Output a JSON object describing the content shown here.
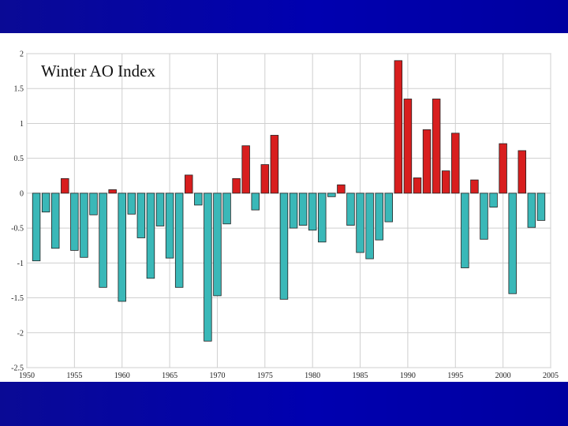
{
  "chart_data": {
    "type": "bar",
    "title": "Winter AO Index",
    "xlabel": "",
    "ylabel": "",
    "xlim": [
      1950,
      2005
    ],
    "ylim": [
      -2.5,
      2
    ],
    "x_ticks": [
      "1950",
      "1955",
      "1960",
      "1965",
      "1970",
      "1975",
      "1980",
      "1985",
      "1990",
      "1995",
      "2000",
      "2005"
    ],
    "y_ticks": [
      "2",
      "1.5",
      "1",
      "0.5",
      "0",
      "-0.5",
      "-1",
      "-1.5",
      "-2",
      "-2.5"
    ],
    "grid": true,
    "colors": {
      "positive": "#d81e1e",
      "negative": "#3ab8b8",
      "outline": "#222222"
    },
    "x": [
      1951,
      1952,
      1953,
      1954,
      1955,
      1956,
      1957,
      1958,
      1959,
      1960,
      1961,
      1962,
      1963,
      1964,
      1965,
      1966,
      1967,
      1968,
      1969,
      1970,
      1971,
      1972,
      1973,
      1974,
      1975,
      1976,
      1977,
      1978,
      1979,
      1980,
      1981,
      1982,
      1983,
      1984,
      1985,
      1986,
      1987,
      1988,
      1989,
      1990,
      1991,
      1992,
      1993,
      1994,
      1995,
      1996,
      1997,
      1998,
      1999,
      2000,
      2001,
      2002,
      2003,
      2004
    ],
    "values": [
      -0.97,
      -0.27,
      -0.79,
      0.21,
      -0.82,
      -0.92,
      -0.31,
      -1.35,
      0.05,
      -1.55,
      -0.3,
      -0.64,
      -1.22,
      -0.47,
      -0.93,
      -1.35,
      0.26,
      -0.17,
      -2.12,
      -1.47,
      -0.44,
      0.21,
      0.68,
      -0.24,
      0.41,
      0.83,
      -1.52,
      -0.5,
      -0.46,
      -0.53,
      -0.7,
      -0.05,
      0.12,
      -0.46,
      -0.85,
      -0.94,
      -0.67,
      -0.41,
      1.9,
      1.35,
      0.22,
      0.91,
      1.35,
      0.32,
      0.86,
      -1.07,
      0.19,
      -0.66,
      -0.2,
      0.71,
      -1.44,
      0.61,
      -0.49,
      -0.39
    ]
  }
}
